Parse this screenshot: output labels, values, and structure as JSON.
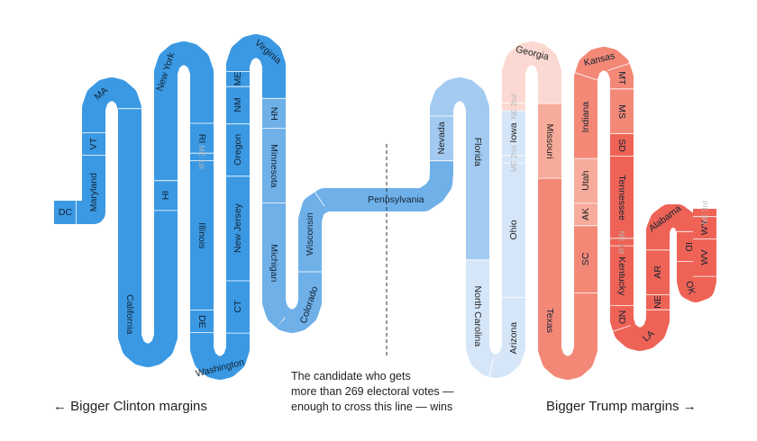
{
  "chart_data": {
    "type": "snake",
    "title": "",
    "left_caption": "← Bigger Clinton margins",
    "right_caption": "Bigger Trump margins →",
    "threshold_note": [
      "The candidate who gets",
      "more than 269 electoral votes —",
      "enough to cross this line — wins"
    ],
    "threshold_electoral_votes": 270,
    "colors": {
      "clinton_safe": "#3b99e3",
      "clinton_likely": "#6fb0e9",
      "clinton_lean": "#a3cbf2",
      "tossup_dem": "#d6e6f9",
      "tossup_rep": "#fbd8d1",
      "trump_lean": "#f7ab9b",
      "trump_likely": "#f38877",
      "trump_safe": "#ee6356",
      "label_on_light": "#222222",
      "label_gray": "#b8b8b8"
    },
    "states": [
      {
        "name": "DC",
        "ev": 3,
        "rating": "clinton_safe"
      },
      {
        "name": "Maryland",
        "ev": 10,
        "rating": "clinton_safe"
      },
      {
        "name": "VT",
        "ev": 3,
        "rating": "clinton_safe"
      },
      {
        "name": "MA",
        "ev": 11,
        "rating": "clinton_safe"
      },
      {
        "name": "California",
        "ev": 55,
        "rating": "clinton_safe"
      },
      {
        "name": "HI",
        "ev": 4,
        "rating": "clinton_safe"
      },
      {
        "name": "New York",
        "ev": 29,
        "rating": "clinton_safe"
      },
      {
        "name": "RI",
        "ev": 4,
        "rating": "clinton_safe"
      },
      {
        "name": "ME 1st",
        "ev": 1,
        "rating": "clinton_safe"
      },
      {
        "name": "Illinois",
        "ev": 20,
        "rating": "clinton_safe"
      },
      {
        "name": "DE",
        "ev": 3,
        "rating": "clinton_safe"
      },
      {
        "name": "Washington",
        "ev": 12,
        "rating": "clinton_safe"
      },
      {
        "name": "CT",
        "ev": 7,
        "rating": "clinton_safe"
      },
      {
        "name": "New Jersey",
        "ev": 14,
        "rating": "clinton_safe"
      },
      {
        "name": "Oregon",
        "ev": 7,
        "rating": "clinton_safe"
      },
      {
        "name": "NM",
        "ev": 5,
        "rating": "clinton_safe"
      },
      {
        "name": "ME",
        "ev": 2,
        "rating": "clinton_safe"
      },
      {
        "name": "Virginia",
        "ev": 13,
        "rating": "clinton_safe"
      },
      {
        "name": "NH",
        "ev": 4,
        "rating": "clinton_likely"
      },
      {
        "name": "Minnesota",
        "ev": 10,
        "rating": "clinton_likely"
      },
      {
        "name": "Michigan",
        "ev": 16,
        "rating": "clinton_likely"
      },
      {
        "name": "Colorado",
        "ev": 9,
        "rating": "clinton_likely"
      },
      {
        "name": "Wisconsin",
        "ev": 10,
        "rating": "clinton_likely"
      },
      {
        "name": "Pennsylvania",
        "ev": 20,
        "rating": "clinton_likely"
      },
      {
        "name": "Nevada",
        "ev": 6,
        "rating": "clinton_lean"
      },
      {
        "name": "Florida",
        "ev": 29,
        "rating": "clinton_lean"
      },
      {
        "name": "North Carolina",
        "ev": 15,
        "rating": "tossup_dem"
      },
      {
        "name": "Arizona",
        "ev": 11,
        "rating": "tossup_dem"
      },
      {
        "name": "Ohio",
        "ev": 18,
        "rating": "tossup_dem"
      },
      {
        "name": "ME 2nd",
        "ev": 1,
        "rating": "tossup_dem"
      },
      {
        "name": "Iowa",
        "ev": 6,
        "rating": "tossup_dem"
      },
      {
        "name": "NE 2nd",
        "ev": 1,
        "rating": "tossup_rep"
      },
      {
        "name": "Georgia",
        "ev": 16,
        "rating": "tossup_rep"
      },
      {
        "name": "Missouri",
        "ev": 10,
        "rating": "trump_lean"
      },
      {
        "name": "Texas",
        "ev": 38,
        "rating": "trump_likely"
      },
      {
        "name": "SC",
        "ev": 9,
        "rating": "trump_likely"
      },
      {
        "name": "AK",
        "ev": 3,
        "rating": "trump_lean"
      },
      {
        "name": "Utah",
        "ev": 6,
        "rating": "trump_lean"
      },
      {
        "name": "Indiana",
        "ev": 11,
        "rating": "trump_likely"
      },
      {
        "name": "Kansas",
        "ev": 6,
        "rating": "trump_likely"
      },
      {
        "name": "MT",
        "ev": 3,
        "rating": "trump_likely"
      },
      {
        "name": "MS",
        "ev": 6,
        "rating": "trump_likely"
      },
      {
        "name": "SD",
        "ev": 3,
        "rating": "trump_safe"
      },
      {
        "name": "Tennessee",
        "ev": 11,
        "rating": "trump_safe"
      },
      {
        "name": "NE 1st",
        "ev": 1,
        "rating": "trump_safe"
      },
      {
        "name": "Kentucky",
        "ev": 8,
        "rating": "trump_safe"
      },
      {
        "name": "ND",
        "ev": 3,
        "rating": "trump_safe"
      },
      {
        "name": "LA",
        "ev": 8,
        "rating": "trump_safe"
      },
      {
        "name": "NE",
        "ev": 2,
        "rating": "trump_safe"
      },
      {
        "name": "AR",
        "ev": 6,
        "rating": "trump_safe"
      },
      {
        "name": "Alabama",
        "ev": 9,
        "rating": "trump_safe"
      },
      {
        "name": "ID",
        "ev": 4,
        "rating": "trump_safe"
      },
      {
        "name": "OK",
        "ev": 7,
        "rating": "trump_safe"
      },
      {
        "name": "WV",
        "ev": 5,
        "rating": "trump_safe"
      },
      {
        "name": "WY",
        "ev": 3,
        "rating": "trump_safe"
      },
      {
        "name": "NE 3rd",
        "ev": 1,
        "rating": "trump_safe"
      }
    ]
  }
}
